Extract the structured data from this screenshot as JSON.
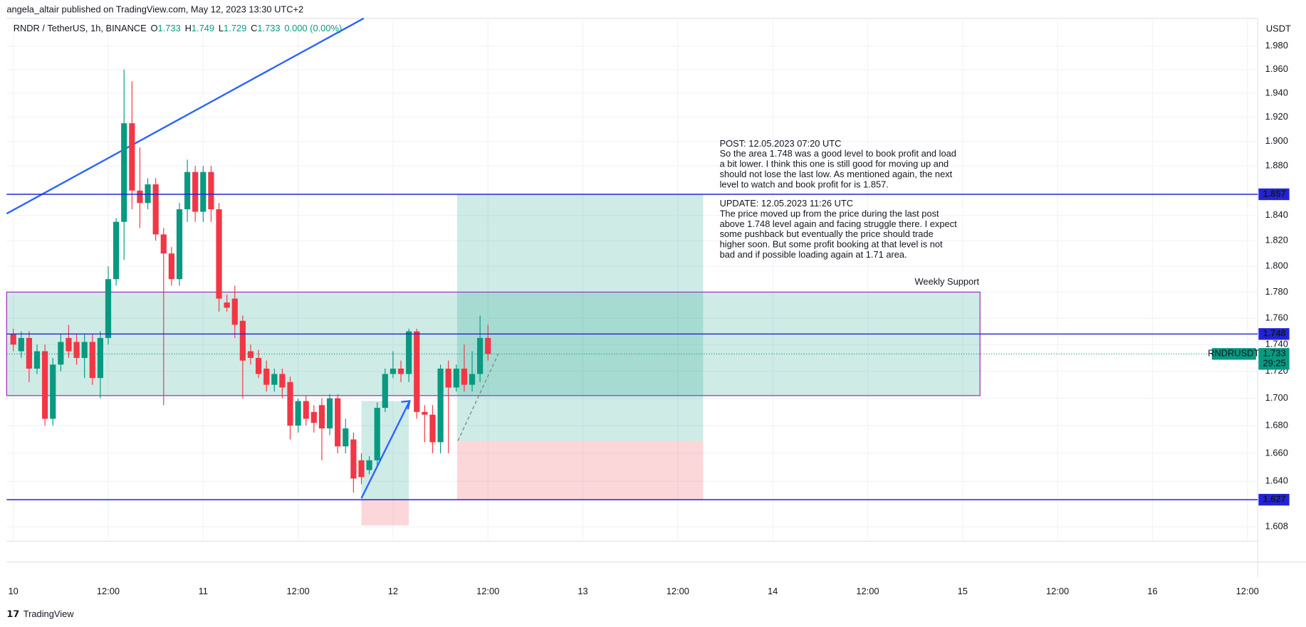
{
  "header": {
    "published": "angela_altair published on TradingView.com, May 12, 2023 13:30 UTC+2",
    "footer": "TradingView"
  },
  "chart_data": {
    "type": "candlestick",
    "log_scale": true,
    "grid": true,
    "legend": [
      "RNDR / TetherUS, 1h, BINANCE",
      "O",
      "1.733",
      "H",
      "1.749",
      "L",
      "1.729",
      "C",
      "1.733",
      "0.000 (0.00%)"
    ],
    "y_unit": "USDT",
    "up_color": "#089981",
    "down_color": "#f23645",
    "xlim": [
      -0.84,
      157.3
    ],
    "ylim": [
      1.598,
      2.004
    ],
    "xticks": [
      {
        "value": 0,
        "label": "10"
      },
      {
        "value": 12,
        "label": "12:00"
      },
      {
        "value": 24,
        "label": "11"
      },
      {
        "value": 36,
        "label": "12:00"
      },
      {
        "value": 48,
        "label": "12"
      },
      {
        "value": 60,
        "label": "12:00"
      },
      {
        "value": 72,
        "label": "13"
      },
      {
        "value": 84,
        "label": "12:00"
      },
      {
        "value": 96,
        "label": "14"
      },
      {
        "value": 108,
        "label": "12:00"
      },
      {
        "value": 120,
        "label": "15"
      },
      {
        "value": 132,
        "label": "12:00"
      },
      {
        "value": 144,
        "label": "16"
      },
      {
        "value": 156,
        "label": "12:00"
      }
    ],
    "yticks": [
      {
        "value": 1.98,
        "label": "1.980"
      },
      {
        "value": 1.96,
        "label": "1.960"
      },
      {
        "value": 1.94,
        "label": "1.940"
      },
      {
        "value": 1.92,
        "label": "1.920"
      },
      {
        "value": 1.9,
        "label": "1.900"
      },
      {
        "value": 1.88,
        "label": "1.880"
      },
      {
        "value": 1.84,
        "label": "1.840"
      },
      {
        "value": 1.82,
        "label": "1.820"
      },
      {
        "value": 1.8,
        "label": "1.800"
      },
      {
        "value": 1.78,
        "label": "1.780"
      },
      {
        "value": 1.76,
        "label": "1.760"
      },
      {
        "value": 1.74,
        "label": "1.740"
      },
      {
        "value": 1.72,
        "label": "1.720"
      },
      {
        "value": 1.7,
        "label": "1.700"
      },
      {
        "value": 1.68,
        "label": "1.680"
      },
      {
        "value": 1.66,
        "label": "1.660"
      },
      {
        "value": 1.64,
        "label": "1.640"
      },
      {
        "value": 1.608,
        "label": "1.608"
      }
    ],
    "x": [
      0,
      1,
      2,
      3,
      4,
      5,
      6,
      7,
      8,
      9,
      10,
      11,
      12,
      13,
      14,
      15,
      16,
      17,
      18,
      19,
      20,
      21,
      22,
      23,
      24,
      25,
      26,
      27,
      28,
      29,
      30,
      31,
      32,
      33,
      34,
      35,
      36,
      37,
      38,
      39,
      40,
      41,
      42,
      43,
      44,
      45,
      46,
      47,
      48,
      49,
      50,
      51,
      52,
      53,
      54,
      55,
      56,
      57,
      58,
      59,
      60
    ],
    "open": [
      1.748,
      1.735,
      1.745,
      1.722,
      1.735,
      1.685,
      1.725,
      1.745,
      1.742,
      1.73,
      1.742,
      1.715,
      1.745,
      1.79,
      1.835,
      1.915,
      1.86,
      1.85,
      1.865,
      1.825,
      1.81,
      1.79,
      1.845,
      1.875,
      1.843,
      1.875,
      1.845,
      1.772,
      1.775,
      1.758,
      1.735,
      1.73,
      1.722,
      1.71,
      1.718,
      1.712,
      1.68,
      1.698,
      1.69,
      1.695,
      1.678,
      1.7,
      1.665,
      1.67,
      1.655,
      1.648,
      1.655,
      1.693,
      1.718,
      1.722,
      1.718,
      1.75,
      1.69,
      1.688,
      1.668,
      1.722,
      1.708,
      1.722,
      1.71,
      1.718,
      1.745
    ],
    "high": [
      1.752,
      1.75,
      1.75,
      1.74,
      1.74,
      1.73,
      1.748,
      1.755,
      1.748,
      1.748,
      1.748,
      1.75,
      1.8,
      1.838,
      1.96,
      1.95,
      1.895,
      1.87,
      1.87,
      1.83,
      1.815,
      1.85,
      1.885,
      1.88,
      1.88,
      1.88,
      1.85,
      1.778,
      1.785,
      1.762,
      1.74,
      1.736,
      1.728,
      1.722,
      1.722,
      1.716,
      1.7,
      1.702,
      1.695,
      1.7,
      1.703,
      1.703,
      1.685,
      1.675,
      1.66,
      1.658,
      1.697,
      1.722,
      1.735,
      1.728,
      1.752,
      1.752,
      1.695,
      1.695,
      1.725,
      1.728,
      1.725,
      1.74,
      1.735,
      1.762,
      1.755
    ],
    "low": [
      1.735,
      1.73,
      1.712,
      1.718,
      1.68,
      1.68,
      1.72,
      1.73,
      1.725,
      1.715,
      1.71,
      1.7,
      1.74,
      1.785,
      1.805,
      1.845,
      1.83,
      1.845,
      1.82,
      1.695,
      1.785,
      1.785,
      1.835,
      1.835,
      1.835,
      1.835,
      1.765,
      1.765,
      1.745,
      1.7,
      1.725,
      1.715,
      1.705,
      1.705,
      1.7,
      1.67,
      1.675,
      1.68,
      1.675,
      1.655,
      1.673,
      1.66,
      1.66,
      1.632,
      1.638,
      1.645,
      1.65,
      1.69,
      1.715,
      1.712,
      1.712,
      1.685,
      1.668,
      1.66,
      1.66,
      1.66,
      1.705,
      1.705,
      1.705,
      1.712,
      1.728
    ],
    "close": [
      1.74,
      1.745,
      1.722,
      1.735,
      1.685,
      1.725,
      1.742,
      1.735,
      1.73,
      1.742,
      1.715,
      1.745,
      1.79,
      1.835,
      1.915,
      1.86,
      1.85,
      1.865,
      1.825,
      1.81,
      1.79,
      1.845,
      1.875,
      1.843,
      1.875,
      1.845,
      1.775,
      1.768,
      1.755,
      1.728,
      1.73,
      1.718,
      1.71,
      1.718,
      1.708,
      1.68,
      1.698,
      1.685,
      1.682,
      1.678,
      1.7,
      1.665,
      1.678,
      1.642,
      1.643,
      1.655,
      1.693,
      1.718,
      1.722,
      1.718,
      1.75,
      1.69,
      1.688,
      1.668,
      1.722,
      1.708,
      1.722,
      1.71,
      1.718,
      1.745,
      1.733
    ],
    "price_lines": {
      "color": "#2323d6",
      "values": [
        1.857,
        1.748,
        1.627
      ]
    },
    "last_price": {
      "symbol": "RNDRUSDT",
      "value": 1.733,
      "countdown": "29:25"
    },
    "zone": {
      "label": "Weekly Support",
      "x": [
        -0.84,
        122.2
      ],
      "y": [
        1.702,
        1.78
      ],
      "color": "#9c27b0"
    },
    "position_boxes": [
      {
        "x": [
          44,
          50
        ],
        "target": 1.698,
        "entry": 1.627,
        "stop": 1.609
      },
      {
        "x": [
          56.1,
          87.2
        ],
        "target": 1.857,
        "entry": 1.669,
        "stop": 1.627
      }
    ],
    "trend_line": {
      "color": "#2962ff",
      "x": [
        -0.84,
        44.3
      ],
      "y": [
        1.8415,
        2.004
      ]
    },
    "arrow": {
      "x": [
        44,
        50.1
      ],
      "y": [
        1.628,
        1.698
      ]
    },
    "dashed_line": {
      "x": [
        56.2,
        61.3
      ],
      "y": [
        1.669,
        1.733
      ]
    },
    "notes": {
      "color": "#2962ff",
      "post": [
        "POST: 12.05.2023 07:20 UTC",
        "So the area 1.748 was a good level to book profit and load",
        "a bit lower. I think this one is still good for moving up and",
        "should not lose the last low. As mentioned again, the next",
        "level to watch and book profit for is 1.857."
      ],
      "update": [
        "UPDATE: 12.05.2023 11:26 UTC",
        "The price moved up from the price during the last post",
        "above 1.748 level again and facing struggle there. I expect",
        "some pushback but eventually the price should trade",
        "higher soon. But some profit booking at that level is not",
        "bad and if possible loading again at 1.71 area."
      ]
    }
  }
}
